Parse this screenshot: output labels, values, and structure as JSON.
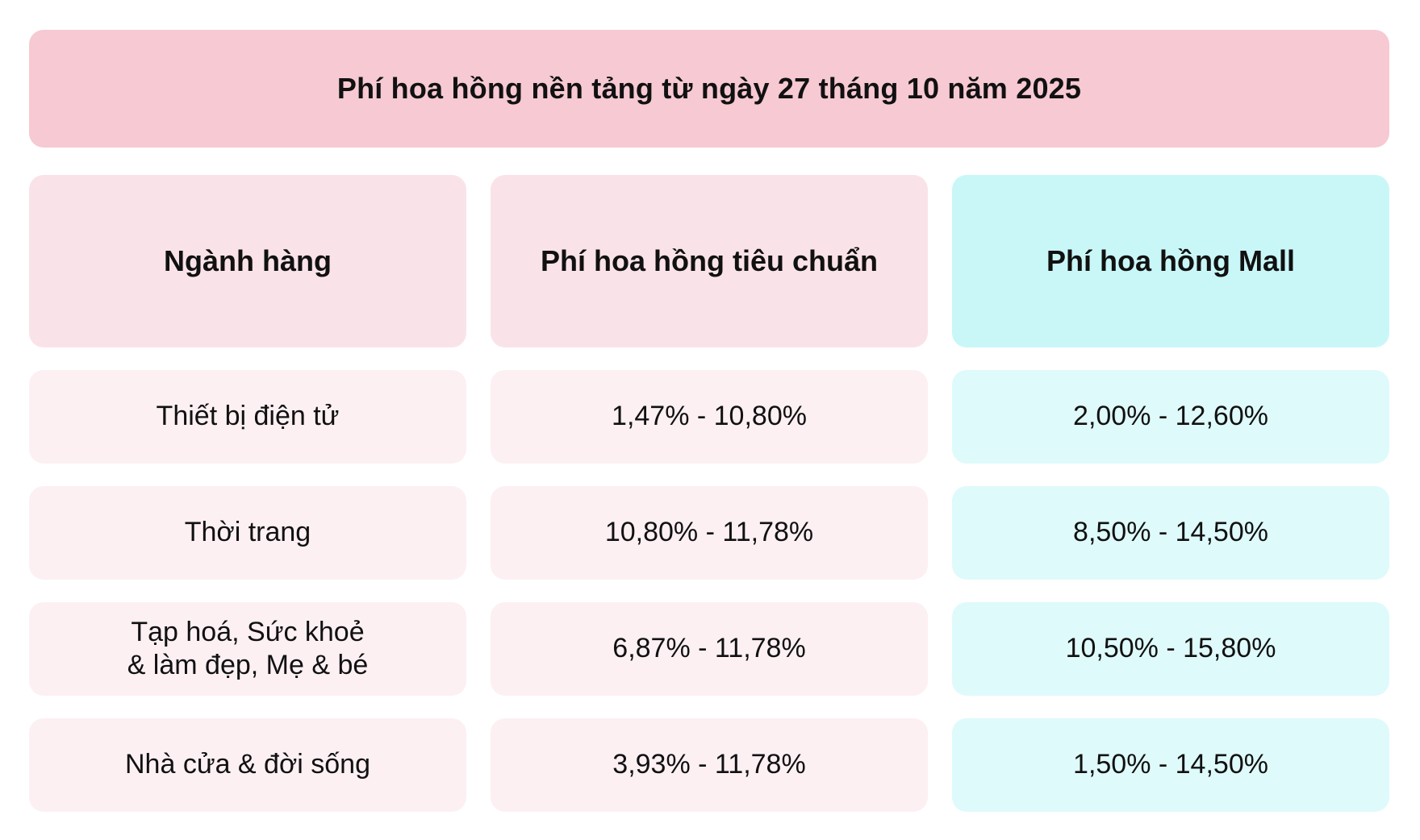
{
  "banner": {
    "title": "Phí hoa hồng nền tảng từ ngày 27 tháng 10 năm 2025"
  },
  "colors": {
    "banner_bg": "#f6c9d3",
    "header_pink_bg": "#fae3e8",
    "header_mall_bg": "#c9f7f8",
    "cell_pink_bg": "#fcf0f3",
    "cell_mall_bg": "#dffafb",
    "text_color": "#111111",
    "page_bg": "#ffffff"
  },
  "chart_data": {
    "type": "table",
    "title": "Phí hoa hồng nền tảng từ ngày 27 tháng 10 năm 2025",
    "columns": [
      "Ngành hàng",
      "Phí hoa hồng tiêu chuẩn",
      "Phí hoa hồng Mall"
    ],
    "rows": [
      [
        "Thiết bị điện tử",
        "1,47% - 10,80%",
        "2,00% - 12,60%"
      ],
      [
        "Thời trang",
        "10,80% - 11,78%",
        "8,50% - 14,50%"
      ],
      [
        "Tạp hoá, Sức khoẻ\n& làm đẹp, Mẹ & bé",
        "6,87% - 11,78%",
        "10,50% - 15,80%"
      ],
      [
        "Nhà cửa & đời sống",
        "3,93% - 11,78%",
        "1,50% - 14,50%"
      ]
    ],
    "layout": {
      "header_accents": [
        "pink",
        "pink",
        "mall"
      ],
      "legend_position": "none",
      "grid": false
    }
  }
}
